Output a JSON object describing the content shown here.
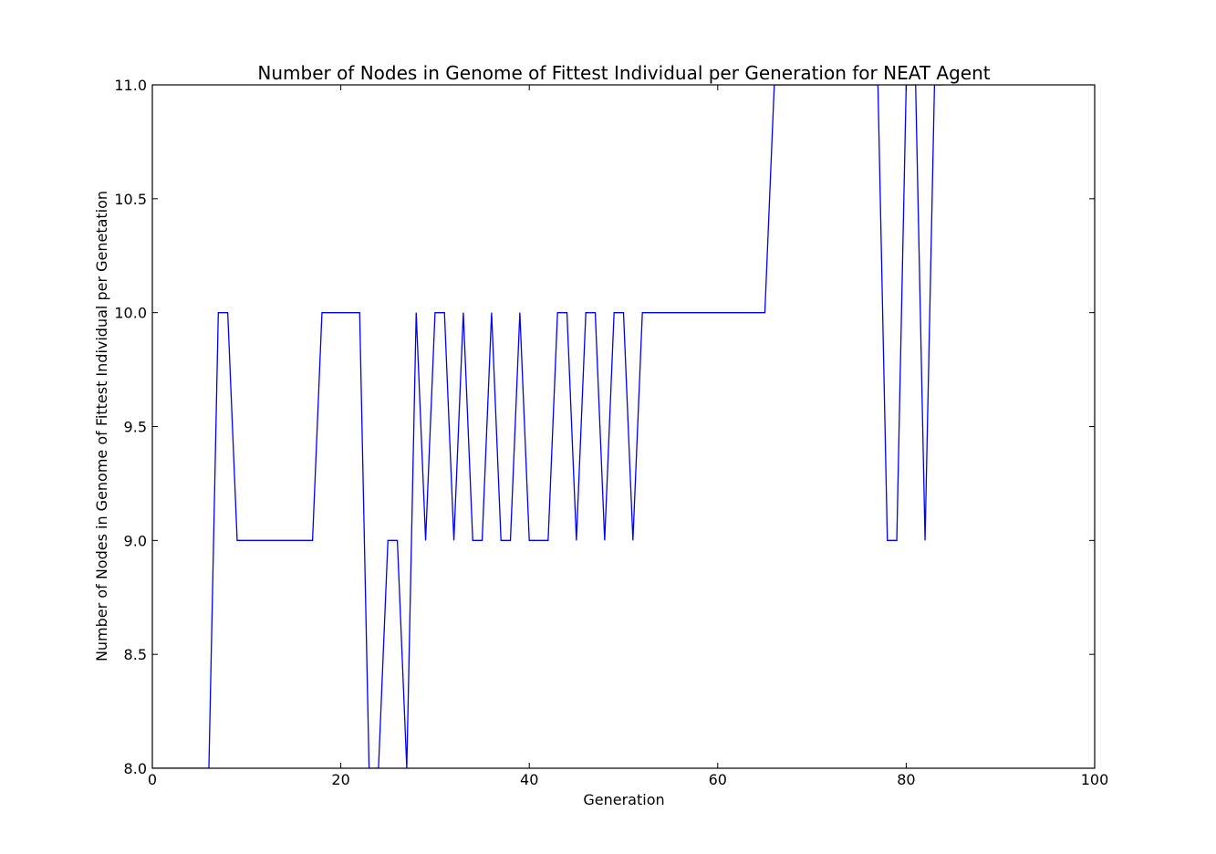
{
  "chart_data": {
    "type": "line",
    "title": "Number of Nodes in Genome of Fittest Individual per Generation for NEAT Agent",
    "xlabel": "Generation",
    "ylabel": "Number of Nodes in Genome of Fittest Individual per Genetation",
    "xlim": [
      0,
      100
    ],
    "ylim": [
      8.0,
      11.0
    ],
    "xticks": [
      0,
      20,
      40,
      60,
      80,
      100
    ],
    "xtick_labels": [
      "0",
      "20",
      "40",
      "60",
      "80",
      "100"
    ],
    "yticks": [
      8.0,
      8.5,
      9.0,
      9.5,
      10.0,
      10.5,
      11.0
    ],
    "ytick_labels": [
      "8.0",
      "8.5",
      "9.0",
      "9.5",
      "10.0",
      "10.5",
      "11.0"
    ],
    "grid": false,
    "line_color": "#0000ff",
    "series": [
      {
        "x": [
          0,
          1,
          2,
          3,
          4,
          5,
          6,
          7,
          8,
          9,
          10,
          11,
          12,
          13,
          14,
          15,
          16,
          17,
          18,
          19,
          20,
          21,
          22,
          23,
          24,
          25,
          26,
          27,
          28,
          29,
          30,
          31,
          32,
          33,
          34,
          35,
          36,
          37,
          38,
          39,
          40,
          41,
          42,
          43,
          44,
          45,
          46,
          47,
          48,
          49,
          50,
          51,
          52,
          53,
          54,
          55,
          56,
          57,
          58,
          59,
          60,
          61,
          62,
          63,
          64,
          65,
          66,
          67,
          68,
          69,
          70,
          71,
          72,
          73,
          74,
          75,
          76,
          77,
          78,
          79,
          80,
          81,
          82,
          83,
          84
        ],
        "y": [
          8,
          8,
          8,
          8,
          8,
          8,
          8,
          10,
          10,
          9,
          9,
          9,
          9,
          9,
          9,
          9,
          9,
          9,
          10,
          10,
          10,
          10,
          10,
          8,
          8,
          9,
          9,
          8,
          10,
          9,
          10,
          10,
          9,
          10,
          9,
          9,
          10,
          9,
          9,
          10,
          9,
          9,
          9,
          10,
          10,
          9,
          10,
          10,
          9,
          10,
          10,
          9,
          10,
          10,
          10,
          10,
          10,
          10,
          10,
          10,
          10,
          10,
          10,
          10,
          10,
          10,
          11,
          11,
          11,
          11,
          11,
          11,
          11,
          11,
          11,
          11,
          11,
          11,
          9,
          9,
          11,
          11,
          9,
          11,
          11
        ]
      }
    ]
  }
}
